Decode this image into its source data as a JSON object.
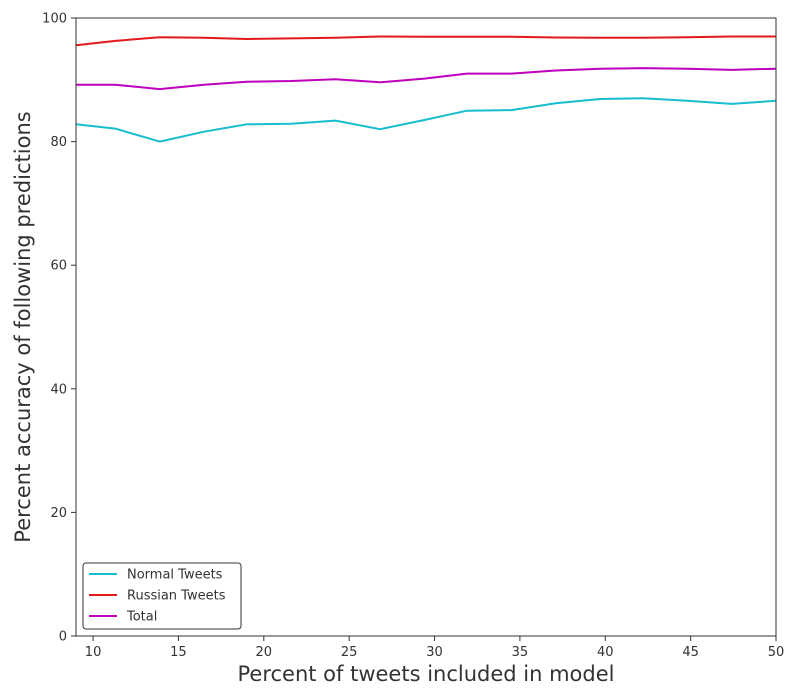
{
  "chart_data": {
    "type": "line",
    "title": "",
    "xlabel": "Percent of tweets included in model",
    "ylabel": "Percent accuracy of following predictions",
    "xlim": [
      9,
      50
    ],
    "ylim": [
      0,
      100
    ],
    "xticks": [
      10,
      15,
      20,
      25,
      30,
      35,
      40,
      45,
      50
    ],
    "yticks": [
      0,
      20,
      40,
      60,
      80,
      100
    ],
    "grid": false,
    "legend_position": "lower-left",
    "x": [
      9,
      11.3,
      13.9,
      16.5,
      19,
      21.6,
      24.2,
      26.8,
      29.4,
      31.9,
      34.5,
      37.1,
      39.7,
      42.2,
      44.8,
      47.4,
      50
    ],
    "series": [
      {
        "name": "Normal Tweets",
        "color": "#17becf",
        "values": [
          82.8,
          82.1,
          80.0,
          81.6,
          82.8,
          82.9,
          83.4,
          82.0,
          83.5,
          85.0,
          85.1,
          86.2,
          86.9,
          87.0,
          86.6,
          86.1,
          86.6
        ]
      },
      {
        "name": "Russian Tweets",
        "color": "#e31a1c",
        "values": [
          95.6,
          96.3,
          96.9,
          96.8,
          96.6,
          96.7,
          96.8,
          97.0,
          96.95,
          96.95,
          96.95,
          96.85,
          96.8,
          96.8,
          96.9,
          97.0,
          97.0
        ]
      },
      {
        "name": "Total",
        "color": "#bf00bf",
        "values": [
          89.2,
          89.2,
          88.5,
          89.2,
          89.7,
          89.8,
          90.1,
          89.6,
          90.2,
          91.0,
          91.0,
          91.5,
          91.8,
          91.9,
          91.8,
          91.6,
          91.8
        ]
      }
    ]
  }
}
